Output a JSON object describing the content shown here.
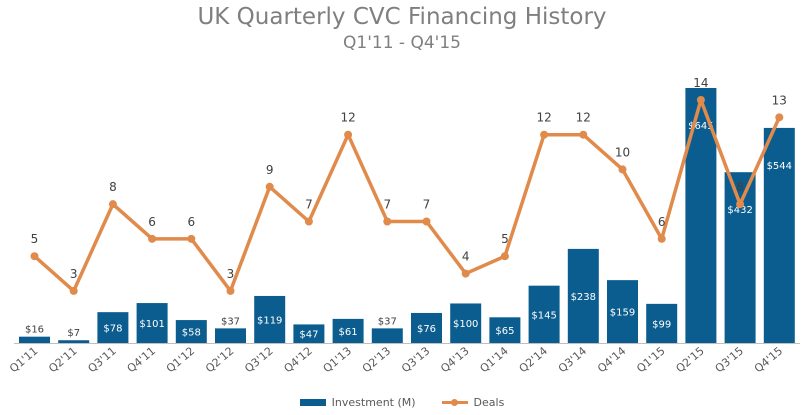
{
  "colors": {
    "investment": "#0b5d8f",
    "deals": "#e08a4b",
    "title": "#7f7f7f"
  },
  "chart_data": {
    "type": "bar+line",
    "title": "UK Quarterly CVC Financing History",
    "subtitle": "Q1'11 - Q4'15",
    "categories": [
      "Q1'11",
      "Q2'11",
      "Q3'11",
      "Q4'11",
      "Q1'12",
      "Q2'12",
      "Q3'12",
      "Q4'12",
      "Q1'13",
      "Q2'13",
      "Q3'13",
      "Q4'13",
      "Q1'14",
      "Q2'14",
      "Q3'14",
      "Q4'14",
      "Q1'15",
      "Q2'15",
      "Q3'15",
      "Q4'15"
    ],
    "series": [
      {
        "name": "Investment (M)",
        "type": "bar",
        "axis": "primary",
        "values": [
          16,
          7,
          78,
          101,
          58,
          37,
          119,
          47,
          61,
          37,
          76,
          100,
          65,
          145,
          238,
          159,
          99,
          645,
          432,
          544
        ],
        "labels": [
          "$16",
          "$7",
          "$78",
          "$101",
          "$58",
          "$37",
          "$119",
          "$47",
          "$61",
          "$37",
          "$76",
          "$100",
          "$65",
          "$145",
          "$238",
          "$159",
          "$99",
          "$645",
          "$432",
          "$544"
        ]
      },
      {
        "name": "Deals",
        "type": "line",
        "axis": "secondary",
        "values": [
          5,
          3,
          8,
          6,
          6,
          3,
          9,
          7,
          12,
          7,
          7,
          4,
          5,
          12,
          12,
          10,
          6,
          14,
          8,
          13
        ]
      }
    ],
    "ylim_primary": [
      0,
      650
    ],
    "ylim_secondary": [
      0,
      14
    ],
    "grid": false,
    "legend": "bottom"
  }
}
